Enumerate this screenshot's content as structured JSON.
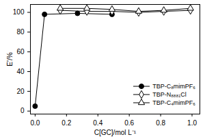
{
  "chart_data": {
    "type": "line",
    "x_label": "C[GC]/mol L⁻¹",
    "y_label": "E'/%",
    "xlim": [
      -0.03,
      1.05
    ],
    "ylim": [
      -3,
      108
    ],
    "xticks": [
      {
        "value": 0,
        "label": "0.0"
      },
      0.2,
      0.4,
      0.6,
      0.8,
      {
        "value": 1,
        "label": "1.0"
      }
    ],
    "yticks": [
      0,
      20,
      40,
      60,
      80,
      100
    ],
    "legend": "lower right",
    "series": [
      {
        "name": "TBP-C₈mimPF₆",
        "color": "#000000",
        "marker": "circle",
        "line_style": "solid",
        "x": [
          0,
          0.06,
          0.27,
          0.49
        ],
        "values": [
          5,
          98,
          99,
          98
        ]
      },
      {
        "name": "TBP-N₈₈₈₁Cl",
        "color": "#000000",
        "marker": "diamond",
        "line_style": "solid",
        "x": [
          0.16,
          0.33,
          0.49,
          0.66,
          0.82,
          0.99
        ],
        "values": [
          102,
          101,
          101,
          100,
          101,
          102
        ]
      },
      {
        "name": "TBP-C₄mimPF₆",
        "color": "#000000",
        "marker": "triangle",
        "line_style": "solid",
        "x": [
          0.16,
          0.33,
          0.49,
          0.66,
          0.82,
          0.99
        ],
        "values": [
          104,
          104,
          103,
          101,
          102,
          104
        ]
      }
    ]
  }
}
